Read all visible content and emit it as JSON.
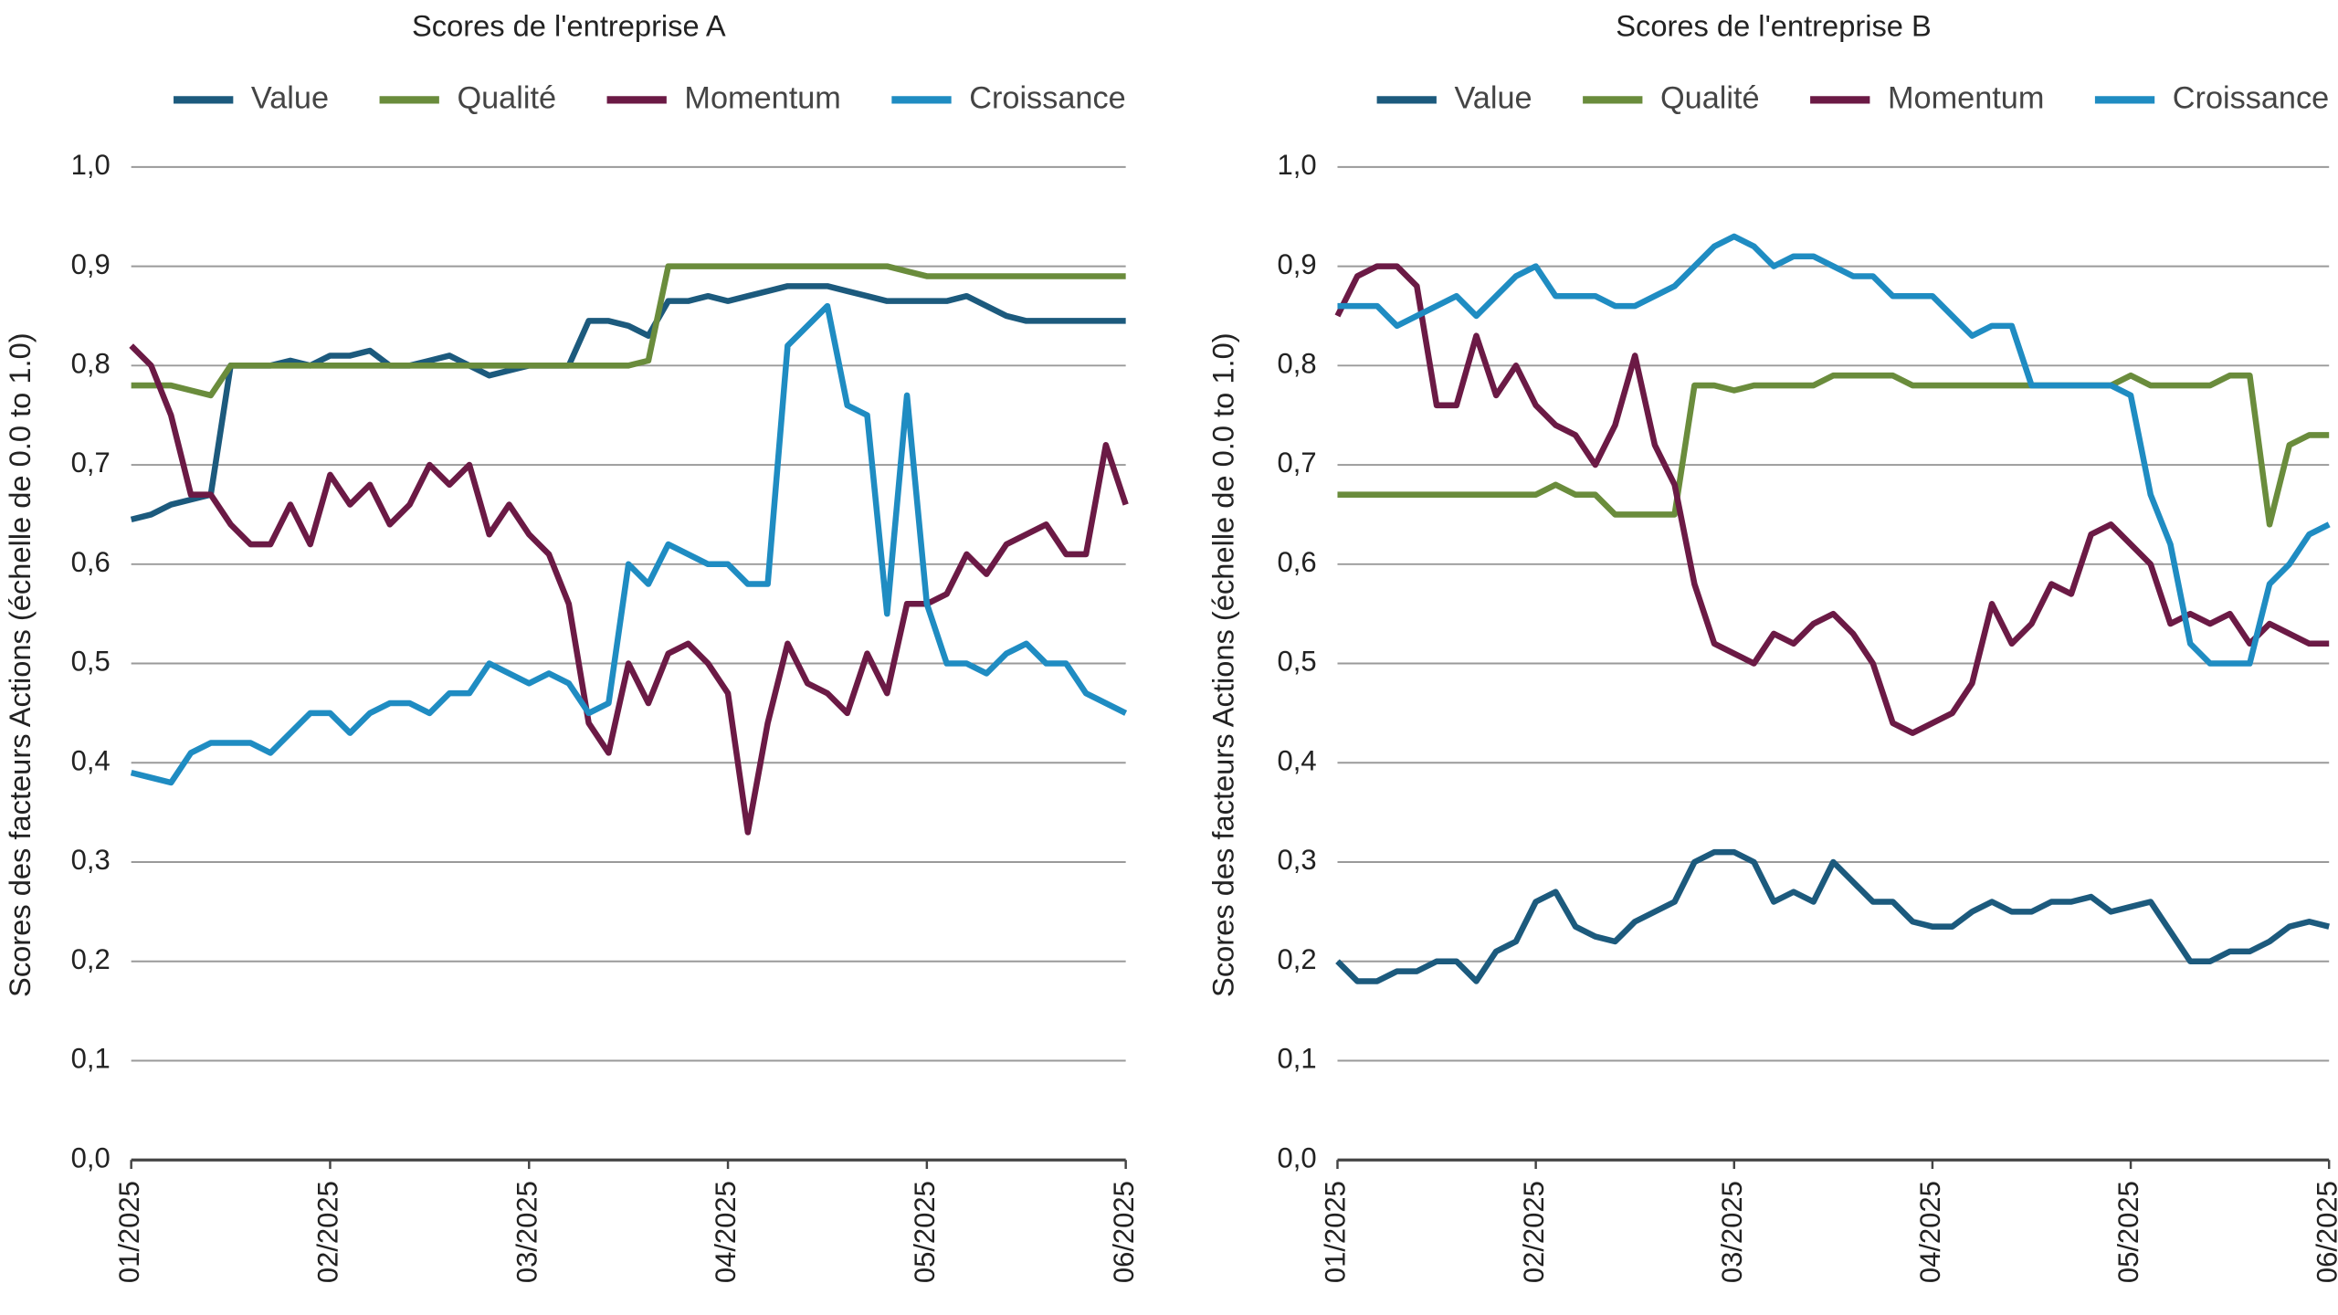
{
  "chart_data": [
    {
      "type": "line",
      "title": "Scores de l'entreprise A",
      "ylabel": "Scores des facteurs Actions (échelle de 0.0 to 1.0)",
      "x": [
        1,
        1.1,
        1.2,
        1.3,
        1.4,
        1.5,
        1.6,
        1.7,
        1.8,
        1.9,
        2,
        2.1,
        2.2,
        2.3,
        2.4,
        2.5,
        2.6,
        2.7,
        2.8,
        2.9,
        3,
        3.1,
        3.2,
        3.3,
        3.4,
        3.5,
        3.6,
        3.7,
        3.8,
        3.9,
        4,
        4.1,
        4.2,
        4.3,
        4.4,
        4.5,
        4.6,
        4.7,
        4.8,
        4.9,
        5,
        5.1,
        5.2,
        5.3,
        5.4,
        5.5,
        5.6,
        5.7,
        5.8,
        5.9,
        6
      ],
      "xlim": [
        1,
        6
      ],
      "xticks": [
        {
          "value": 1,
          "label": "01/2025"
        },
        {
          "value": 2,
          "label": "02/2025"
        },
        {
          "value": 3,
          "label": "03/2025"
        },
        {
          "value": 4,
          "label": "04/2025"
        },
        {
          "value": 5,
          "label": "05/2025"
        },
        {
          "value": 6,
          "label": "06/2025"
        }
      ],
      "ylim": [
        0,
        1
      ],
      "yticks": [
        {
          "value": 0,
          "label": "0,0"
        },
        {
          "value": 0.1,
          "label": "0,1"
        },
        {
          "value": 0.2,
          "label": "0,2"
        },
        {
          "value": 0.3,
          "label": "0,3"
        },
        {
          "value": 0.4,
          "label": "0,4"
        },
        {
          "value": 0.5,
          "label": "0,5"
        },
        {
          "value": 0.6,
          "label": "0,6"
        },
        {
          "value": 0.7,
          "label": "0,7"
        },
        {
          "value": 0.8,
          "label": "0,8"
        },
        {
          "value": 0.9,
          "label": "0,9"
        },
        {
          "value": 1,
          "label": "1,0"
        }
      ],
      "grid": true,
      "series": [
        {
          "name": "Value",
          "color": "#1c5a7d",
          "values": [
            0.645,
            0.65,
            0.66,
            0.665,
            0.67,
            0.8,
            0.8,
            0.8,
            0.805,
            0.8,
            0.81,
            0.81,
            0.815,
            0.8,
            0.8,
            0.805,
            0.81,
            0.8,
            0.79,
            0.795,
            0.8,
            0.8,
            0.8,
            0.845,
            0.845,
            0.84,
            0.83,
            0.865,
            0.865,
            0.87,
            0.865,
            0.87,
            0.875,
            0.88,
            0.88,
            0.88,
            0.875,
            0.87,
            0.865,
            0.865,
            0.865,
            0.865,
            0.87,
            0.86,
            0.85,
            0.845,
            0.845,
            0.845,
            0.845,
            0.845,
            0.845
          ]
        },
        {
          "name": "Qualité",
          "color": "#6a8c3c",
          "values": [
            0.78,
            0.78,
            0.78,
            0.775,
            0.77,
            0.8,
            0.8,
            0.8,
            0.8,
            0.8,
            0.8,
            0.8,
            0.8,
            0.8,
            0.8,
            0.8,
            0.8,
            0.8,
            0.8,
            0.8,
            0.8,
            0.8,
            0.8,
            0.8,
            0.8,
            0.8,
            0.805,
            0.9,
            0.9,
            0.9,
            0.9,
            0.9,
            0.9,
            0.9,
            0.9,
            0.9,
            0.9,
            0.9,
            0.9,
            0.895,
            0.89,
            0.89,
            0.89,
            0.89,
            0.89,
            0.89,
            0.89,
            0.89,
            0.89,
            0.89,
            0.89
          ]
        },
        {
          "name": "Momentum",
          "color": "#6b1a45",
          "values": [
            0.82,
            0.8,
            0.75,
            0.67,
            0.67,
            0.64,
            0.62,
            0.62,
            0.66,
            0.62,
            0.69,
            0.66,
            0.68,
            0.64,
            0.66,
            0.7,
            0.68,
            0.7,
            0.63,
            0.66,
            0.63,
            0.61,
            0.56,
            0.44,
            0.41,
            0.5,
            0.46,
            0.51,
            0.52,
            0.5,
            0.47,
            0.33,
            0.44,
            0.52,
            0.48,
            0.47,
            0.45,
            0.51,
            0.47,
            0.56,
            0.56,
            0.57,
            0.61,
            0.59,
            0.62,
            0.63,
            0.64,
            0.61,
            0.61,
            0.72,
            0.66
          ]
        },
        {
          "name": "Croissance",
          "color": "#1f8cc2",
          "values": [
            0.39,
            0.385,
            0.38,
            0.41,
            0.42,
            0.42,
            0.42,
            0.41,
            0.43,
            0.45,
            0.45,
            0.43,
            0.45,
            0.46,
            0.46,
            0.45,
            0.47,
            0.47,
            0.5,
            0.49,
            0.48,
            0.49,
            0.48,
            0.45,
            0.46,
            0.6,
            0.58,
            0.62,
            0.61,
            0.6,
            0.6,
            0.58,
            0.58,
            0.82,
            0.84,
            0.86,
            0.76,
            0.75,
            0.55,
            0.77,
            0.56,
            0.5,
            0.5,
            0.49,
            0.51,
            0.52,
            0.5,
            0.5,
            0.47,
            0.46,
            0.45
          ]
        }
      ]
    },
    {
      "type": "line",
      "title": "Scores de l'entreprise B",
      "ylabel": "Scores des facteurs Actions (échelle de 0.0 to 1.0)",
      "x": [
        1,
        1.1,
        1.2,
        1.3,
        1.4,
        1.5,
        1.6,
        1.7,
        1.8,
        1.9,
        2,
        2.1,
        2.2,
        2.3,
        2.4,
        2.5,
        2.6,
        2.7,
        2.8,
        2.9,
        3,
        3.1,
        3.2,
        3.3,
        3.4,
        3.5,
        3.6,
        3.7,
        3.8,
        3.9,
        4,
        4.1,
        4.2,
        4.3,
        4.4,
        4.5,
        4.6,
        4.7,
        4.8,
        4.9,
        5,
        5.1,
        5.2,
        5.3,
        5.4,
        5.5,
        5.6,
        5.7,
        5.8,
        5.9,
        6
      ],
      "xlim": [
        1,
        6
      ],
      "xticks": [
        {
          "value": 1,
          "label": "01/2025"
        },
        {
          "value": 2,
          "label": "02/2025"
        },
        {
          "value": 3,
          "label": "03/2025"
        },
        {
          "value": 4,
          "label": "04/2025"
        },
        {
          "value": 5,
          "label": "05/2025"
        },
        {
          "value": 6,
          "label": "06/2025"
        }
      ],
      "ylim": [
        0,
        1
      ],
      "yticks": [
        {
          "value": 0,
          "label": "0,0"
        },
        {
          "value": 0.1,
          "label": "0,1"
        },
        {
          "value": 0.2,
          "label": "0,2"
        },
        {
          "value": 0.3,
          "label": "0,3"
        },
        {
          "value": 0.4,
          "label": "0,4"
        },
        {
          "value": 0.5,
          "label": "0,5"
        },
        {
          "value": 0.6,
          "label": "0,6"
        },
        {
          "value": 0.7,
          "label": "0,7"
        },
        {
          "value": 0.8,
          "label": "0,8"
        },
        {
          "value": 0.9,
          "label": "0,9"
        },
        {
          "value": 1,
          "label": "1,0"
        }
      ],
      "grid": true,
      "series": [
        {
          "name": "Value",
          "color": "#1c5a7d",
          "values": [
            0.2,
            0.18,
            0.18,
            0.19,
            0.19,
            0.2,
            0.2,
            0.18,
            0.21,
            0.22,
            0.26,
            0.27,
            0.235,
            0.225,
            0.22,
            0.24,
            0.25,
            0.26,
            0.3,
            0.31,
            0.31,
            0.3,
            0.26,
            0.27,
            0.26,
            0.3,
            0.28,
            0.26,
            0.26,
            0.24,
            0.235,
            0.235,
            0.25,
            0.26,
            0.25,
            0.25,
            0.26,
            0.26,
            0.265,
            0.25,
            0.255,
            0.26,
            0.23,
            0.2,
            0.2,
            0.21,
            0.21,
            0.22,
            0.235,
            0.24,
            0.235
          ]
        },
        {
          "name": "Qualité",
          "color": "#6a8c3c",
          "values": [
            0.67,
            0.67,
            0.67,
            0.67,
            0.67,
            0.67,
            0.67,
            0.67,
            0.67,
            0.67,
            0.67,
            0.68,
            0.67,
            0.67,
            0.65,
            0.65,
            0.65,
            0.65,
            0.78,
            0.78,
            0.775,
            0.78,
            0.78,
            0.78,
            0.78,
            0.79,
            0.79,
            0.79,
            0.79,
            0.78,
            0.78,
            0.78,
            0.78,
            0.78,
            0.78,
            0.78,
            0.78,
            0.78,
            0.78,
            0.78,
            0.79,
            0.78,
            0.78,
            0.78,
            0.78,
            0.79,
            0.79,
            0.64,
            0.72,
            0.73,
            0.73
          ]
        },
        {
          "name": "Momentum",
          "color": "#6b1a45",
          "values": [
            0.85,
            0.89,
            0.9,
            0.9,
            0.88,
            0.76,
            0.76,
            0.83,
            0.77,
            0.8,
            0.76,
            0.74,
            0.73,
            0.7,
            0.74,
            0.81,
            0.72,
            0.68,
            0.58,
            0.52,
            0.51,
            0.5,
            0.53,
            0.52,
            0.54,
            0.55,
            0.53,
            0.5,
            0.44,
            0.43,
            0.44,
            0.45,
            0.48,
            0.56,
            0.52,
            0.54,
            0.58,
            0.57,
            0.63,
            0.64,
            0.62,
            0.6,
            0.54,
            0.55,
            0.54,
            0.55,
            0.52,
            0.54,
            0.53,
            0.52,
            0.52
          ]
        },
        {
          "name": "Croissance",
          "color": "#1f8cc2",
          "values": [
            0.86,
            0.86,
            0.86,
            0.84,
            0.85,
            0.86,
            0.87,
            0.85,
            0.87,
            0.89,
            0.9,
            0.87,
            0.87,
            0.87,
            0.86,
            0.86,
            0.87,
            0.88,
            0.9,
            0.92,
            0.93,
            0.92,
            0.9,
            0.91,
            0.91,
            0.9,
            0.89,
            0.89,
            0.87,
            0.87,
            0.87,
            0.85,
            0.83,
            0.84,
            0.84,
            0.78,
            0.78,
            0.78,
            0.78,
            0.78,
            0.77,
            0.67,
            0.62,
            0.52,
            0.5,
            0.5,
            0.5,
            0.58,
            0.6,
            0.63,
            0.64
          ]
        }
      ]
    }
  ]
}
